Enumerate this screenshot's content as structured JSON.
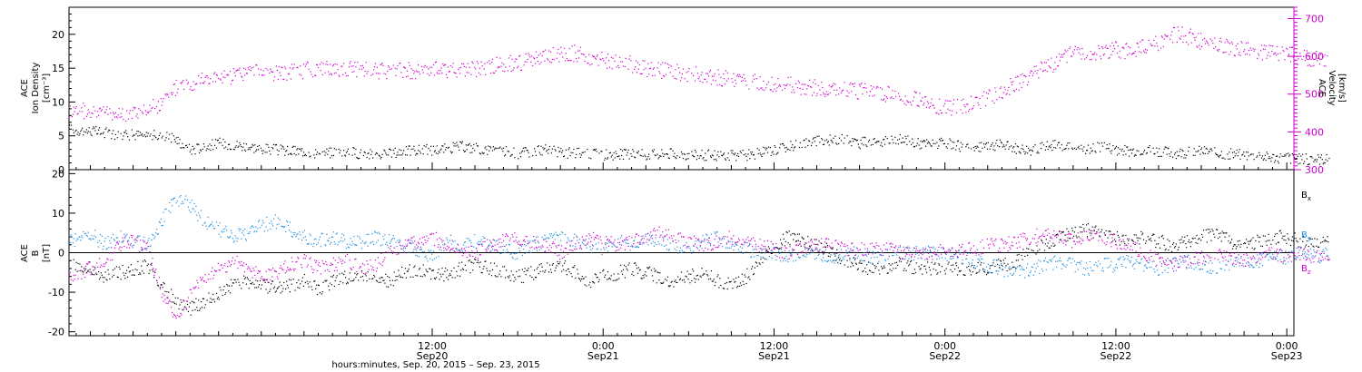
{
  "colors": {
    "black": "#000000",
    "magenta": "#d000d0",
    "blue": "#1f8fe0"
  },
  "footer_label": "hours:minutes, Sep. 20, 2015 – Sep. 23, 2015",
  "x_axis": {
    "range_hours": [
      -13.5,
      72.5
    ],
    "ticks": [
      {
        "hour": 12,
        "line1": "12:00",
        "line2": "Sep20"
      },
      {
        "hour": 24,
        "line1": "0:00",
        "line2": "Sep21"
      },
      {
        "hour": 36,
        "line1": "12:00",
        "line2": "Sep21"
      },
      {
        "hour": 48,
        "line1": "0:00",
        "line2": "Sep22"
      },
      {
        "hour": 60,
        "line1": "12:00",
        "line2": "Sep22"
      },
      {
        "hour": 72,
        "line1": "0:00",
        "line2": "Sep23"
      }
    ]
  },
  "chart_data": [
    {
      "type": "scatter",
      "panel": "top",
      "left_axis": {
        "label_lines": [
          "ACE",
          "Ion Density",
          "[cm⁻³]"
        ],
        "ylim": [
          0,
          24
        ],
        "ticks": [
          0,
          5,
          10,
          15,
          20
        ]
      },
      "right_axis": {
        "label_lines": [
          "ACE",
          "Velocity",
          "[km/s]"
        ],
        "ylim": [
          300,
          730
        ],
        "ticks": [
          300,
          400,
          500,
          600,
          700
        ]
      },
      "series": [
        {
          "key": "density",
          "axis": "left",
          "color": "black",
          "x": [
            -13.5,
            -12,
            -11,
            -10,
            -9,
            -8,
            -7,
            -6,
            -5,
            -4,
            -3,
            -2,
            -1,
            0,
            1,
            2,
            3,
            4,
            5,
            6,
            7,
            8,
            9,
            10,
            11,
            12,
            13,
            14,
            15,
            16,
            17,
            18,
            19,
            20,
            21,
            22,
            23,
            24,
            25,
            26,
            27,
            28,
            29,
            30,
            31,
            32,
            33,
            34,
            35,
            36,
            37,
            38,
            39,
            40,
            41,
            42,
            43,
            44,
            45,
            46,
            47,
            48,
            49,
            50,
            51,
            52,
            53,
            54,
            55,
            56,
            57,
            58,
            59,
            60,
            61,
            62,
            63,
            64,
            65,
            66,
            67,
            68,
            69,
            70,
            71,
            72,
            73,
            74,
            75
          ],
          "y": [
            6,
            5.8,
            5.5,
            5.3,
            5.2,
            5.2,
            5,
            4.5,
            3,
            3.5,
            4,
            3.8,
            3.5,
            3.2,
            3,
            2.8,
            2.8,
            2.5,
            2.6,
            2.8,
            2.4,
            2.2,
            2.5,
            2.8,
            3,
            3,
            3.2,
            3.5,
            3.2,
            3,
            2.8,
            2.5,
            2.8,
            3,
            2.6,
            2.5,
            2.4,
            2.3,
            2.3,
            2.5,
            2.3,
            2.4,
            2.5,
            2.3,
            2.2,
            2.2,
            2.1,
            2.2,
            2.5,
            3,
            3.5,
            4,
            4.2,
            4.5,
            4.5,
            4,
            4.5,
            4.2,
            4.5,
            4,
            3.8,
            4,
            3.5,
            3.2,
            3.5,
            3.8,
            3.2,
            3,
            3.5,
            3.8,
            3.2,
            3,
            3.5,
            3,
            2.8,
            3,
            2.8,
            2.5,
            2.6,
            2.8,
            2.5,
            2.4,
            2.2,
            2,
            1.8,
            1.8,
            1.6,
            1.6,
            1.5
          ]
        },
        {
          "key": "velocity",
          "axis": "right",
          "color": "magenta",
          "x": [
            -13.5,
            -12,
            -11,
            -10,
            -9,
            -8,
            -7,
            -6,
            -5,
            -4,
            -3,
            -2,
            -1,
            0,
            1,
            2,
            3,
            4,
            5,
            6,
            7,
            8,
            9,
            10,
            11,
            12,
            13,
            14,
            15,
            16,
            17,
            18,
            19,
            20,
            21,
            22,
            23,
            24,
            25,
            26,
            27,
            28,
            29,
            30,
            31,
            32,
            33,
            34,
            35,
            36,
            37,
            38,
            39,
            40,
            41,
            42,
            43,
            44,
            45,
            46,
            47,
            48,
            49,
            50,
            51,
            52,
            53,
            54,
            55,
            56,
            57,
            58,
            59,
            60,
            61,
            62,
            63,
            64,
            65,
            66,
            67,
            68,
            69,
            70,
            71,
            72,
            73,
            74,
            75
          ],
          "y": [
            460,
            455,
            448,
            448,
            452,
            460,
            475,
            520,
            530,
            540,
            545,
            550,
            560,
            562,
            558,
            560,
            565,
            570,
            570,
            570,
            565,
            562,
            562,
            565,
            562,
            570,
            565,
            570,
            565,
            575,
            580,
            585,
            590,
            600,
            605,
            610,
            600,
            590,
            585,
            580,
            570,
            565,
            560,
            555,
            550,
            545,
            540,
            535,
            530,
            528,
            525,
            520,
            518,
            515,
            512,
            510,
            505,
            500,
            495,
            490,
            470,
            465,
            470,
            480,
            490,
            510,
            530,
            550,
            570,
            590,
            610,
            610,
            610,
            620,
            615,
            625,
            640,
            660,
            655,
            640,
            630,
            625,
            620,
            615,
            610,
            605,
            600,
            595,
            590
          ]
        }
      ]
    },
    {
      "type": "scatter",
      "panel": "bottom",
      "left_axis": {
        "label_lines": [
          "ACE",
          "B",
          "[nT]"
        ],
        "ylim": [
          -21,
          21
        ],
        "ticks": [
          -20,
          -10,
          0,
          10,
          20
        ]
      },
      "series": [
        {
          "key": "Bx",
          "name": "B",
          "sub": "x",
          "color": "black",
          "x": [
            -13.5,
            -12,
            -11,
            -10,
            -9,
            -8,
            -7,
            -6,
            -5,
            -4,
            -3,
            -2,
            -1,
            0,
            1,
            2,
            3,
            4,
            5,
            6,
            7,
            8,
            9,
            10,
            11,
            12,
            13,
            14,
            15,
            16,
            17,
            18,
            19,
            20,
            21,
            22,
            23,
            24,
            25,
            26,
            27,
            28,
            29,
            30,
            31,
            32,
            33,
            34,
            35,
            36,
            37,
            38,
            39,
            40,
            41,
            42,
            43,
            44,
            45,
            46,
            47,
            48,
            49,
            50,
            51,
            52,
            53,
            54,
            55,
            56,
            57,
            58,
            59,
            60,
            61,
            62,
            63,
            64,
            65,
            66,
            67,
            68,
            69,
            70,
            71,
            72,
            73,
            74,
            75
          ],
          "y": [
            -3,
            -4,
            -6,
            -5,
            -4,
            -3,
            -8,
            -12,
            -14,
            -12,
            -10,
            -8,
            -7,
            -8,
            -9,
            -8,
            -7,
            -9,
            -7,
            -6,
            -5,
            -6,
            -7,
            -5,
            -4,
            -6,
            -5,
            -4,
            -3,
            -4,
            -5,
            -6,
            -5,
            -4,
            -3,
            -5,
            -7,
            -6,
            -5,
            -4,
            -5,
            -6,
            -7,
            -6,
            -5,
            -7,
            -8,
            -6,
            -2,
            2,
            4,
            3,
            2,
            0,
            -2,
            -3,
            -4,
            -4,
            -3,
            -4,
            -4,
            -4,
            -4,
            -4,
            -4,
            -3,
            -2,
            1,
            2,
            4,
            5,
            6,
            5,
            4,
            3,
            4,
            3,
            2,
            3,
            4,
            5,
            3,
            2,
            3,
            4,
            4,
            3,
            3,
            3
          ]
        },
        {
          "key": "By",
          "name": "B",
          "sub": "y",
          "color": "blue",
          "x": [
            -13.5,
            -12,
            -11,
            -10,
            -9,
            -8,
            -7,
            -6,
            -5,
            -4,
            -3,
            -2,
            -1,
            0,
            1,
            2,
            3,
            4,
            5,
            6,
            7,
            8,
            9,
            10,
            11,
            12,
            13,
            14,
            15,
            16,
            17,
            18,
            19,
            20,
            21,
            22,
            23,
            24,
            25,
            26,
            27,
            28,
            29,
            30,
            31,
            32,
            33,
            34,
            35,
            36,
            37,
            38,
            39,
            40,
            41,
            42,
            43,
            44,
            45,
            46,
            47,
            48,
            49,
            50,
            51,
            52,
            53,
            54,
            55,
            56,
            57,
            58,
            59,
            60,
            61,
            62,
            63,
            64,
            65,
            66,
            67,
            68,
            69,
            70,
            71,
            72,
            73,
            74,
            75
          ],
          "y": [
            3,
            5,
            2,
            4,
            3,
            2,
            8,
            14,
            12,
            8,
            6,
            4,
            5,
            7,
            8,
            6,
            4,
            3,
            4,
            3,
            3,
            4,
            3,
            2,
            1,
            -1,
            3,
            2,
            3,
            2,
            1,
            0,
            2,
            3,
            4,
            3,
            2,
            1,
            3,
            2,
            4,
            3,
            2,
            1,
            3,
            4,
            2,
            1,
            0,
            0,
            -1,
            0,
            0,
            -1,
            0,
            0,
            -1,
            0,
            0,
            0,
            0,
            0,
            -1,
            -2,
            -3,
            -4,
            -5,
            -4,
            -3,
            -2,
            -3,
            -4,
            -3,
            -3,
            -2,
            -3,
            -4,
            -3,
            -2,
            -3,
            -4,
            -3,
            -2,
            -2,
            -1,
            -1,
            0,
            -1,
            0
          ]
        },
        {
          "key": "Bz",
          "name": "B",
          "sub": "z",
          "color": "magenta",
          "x": [
            -13.5,
            -12,
            -11,
            -10,
            -9,
            -8,
            -7,
            -6,
            -5,
            -4,
            -3,
            -2,
            -1,
            0,
            1,
            2,
            3,
            4,
            5,
            6,
            7,
            8,
            9,
            10,
            11,
            12,
            13,
            14,
            15,
            16,
            17,
            18,
            19,
            20,
            21,
            22,
            23,
            24,
            25,
            26,
            27,
            28,
            29,
            30,
            31,
            32,
            33,
            34,
            35,
            36,
            37,
            38,
            39,
            40,
            41,
            42,
            43,
            44,
            45,
            46,
            47,
            48,
            49,
            50,
            51,
            52,
            53,
            54,
            55,
            56,
            57,
            58,
            59,
            60,
            61,
            62,
            63,
            64,
            65,
            66,
            67,
            68,
            69,
            70,
            71,
            72,
            73,
            74,
            75
          ],
          "y": [
            -6,
            -4,
            -2,
            2,
            3,
            1,
            -10,
            -16,
            -10,
            -6,
            -4,
            -2,
            -4,
            -6,
            -5,
            -3,
            -2,
            -4,
            -3,
            -2,
            -4,
            -3,
            0,
            2,
            3,
            4,
            2,
            1,
            0,
            2,
            3,
            4,
            3,
            2,
            0,
            2,
            4,
            3,
            2,
            3,
            4,
            5,
            4,
            3,
            2,
            3,
            4,
            3,
            2,
            1,
            0,
            1,
            2,
            2,
            1,
            1,
            1,
            1,
            0,
            0,
            0,
            1,
            1,
            1,
            2,
            2,
            3,
            4,
            5,
            4,
            3,
            5,
            4,
            3,
            2,
            0,
            -2,
            -3,
            -2,
            -1,
            0,
            -1,
            -2,
            -1,
            0,
            -1,
            0,
            -1,
            -1
          ]
        }
      ]
    }
  ]
}
